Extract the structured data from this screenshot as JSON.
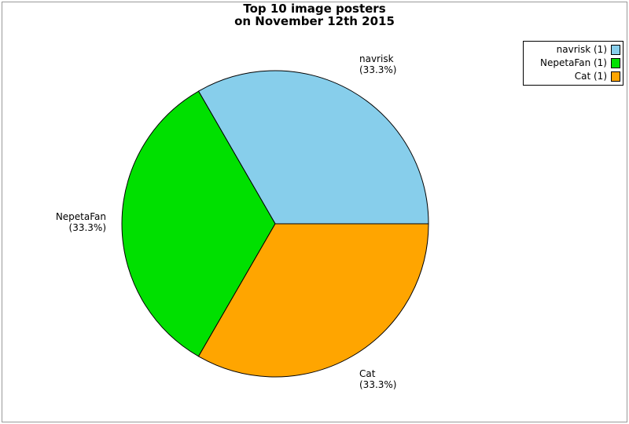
{
  "title": {
    "line1": "Top 10 image posters",
    "line2": "on November 12th 2015"
  },
  "chart_data": {
    "type": "pie",
    "title": "Top 10 image posters on November 12th 2015",
    "slices": [
      {
        "label": "navrisk",
        "value": 1,
        "pct_label": "(33.3%)",
        "color": "#87CEEB",
        "legend_label": "navrisk (1)"
      },
      {
        "label": "NepetaFan",
        "value": 1,
        "pct_label": "(33.3%)",
        "color": "#00E000",
        "legend_label": "NepetaFan (1)"
      },
      {
        "label": "Cat",
        "value": 1,
        "pct_label": "(33.3%)",
        "color": "#FFA500",
        "legend_label": "Cat (1)"
      }
    ],
    "start_angle_deg": 0,
    "direction": "counterclockwise",
    "legend_position": "top-right",
    "slice_outline_color": "#000000",
    "frame_border_color": "#999999",
    "background_color": "#ffffff"
  }
}
